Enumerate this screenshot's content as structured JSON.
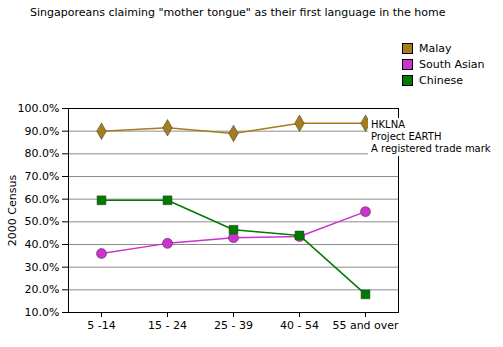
{
  "chart_data": {
    "type": "line",
    "title": "Singaporeans claiming \"mother tongue\" as their first language in the home",
    "y_label": "2000 Census",
    "categories": [
      "5 -14",
      "15 - 24",
      "25 - 39",
      "40 - 54",
      "55 and over"
    ],
    "series": [
      {
        "name": "Malay",
        "color": "#a67c1e",
        "marker": "diamond",
        "values": [
          90,
          91.5,
          89,
          93.5,
          93.5
        ]
      },
      {
        "name": "South Asian",
        "color": "#cc33cc",
        "marker": "circle",
        "values": [
          36,
          40.5,
          43,
          43.5,
          54.5
        ]
      },
      {
        "name": "Chinese",
        "color": "#007a00",
        "marker": "square",
        "values": [
          59.5,
          59.5,
          46.5,
          44,
          18
        ]
      }
    ],
    "ylim": [
      10,
      100
    ],
    "yticks": [
      {
        "value": 10,
        "label": "10.0%"
      },
      {
        "value": 20,
        "label": "20.0%"
      },
      {
        "value": 30,
        "label": "30.0%"
      },
      {
        "value": 40,
        "label": "40.0%"
      },
      {
        "value": 50,
        "label": "50.0%"
      },
      {
        "value": 60,
        "label": "60.0%"
      },
      {
        "value": 70,
        "label": "70.0%"
      },
      {
        "value": 80,
        "label": "80.0%"
      },
      {
        "value": 90,
        "label": "90.0%"
      },
      {
        "value": 100,
        "label": "100.0%"
      }
    ],
    "grid": true,
    "legend": "top-right",
    "annotations": [
      "HKLNA",
      "Project EARTH",
      "A registered trade mark"
    ]
  }
}
